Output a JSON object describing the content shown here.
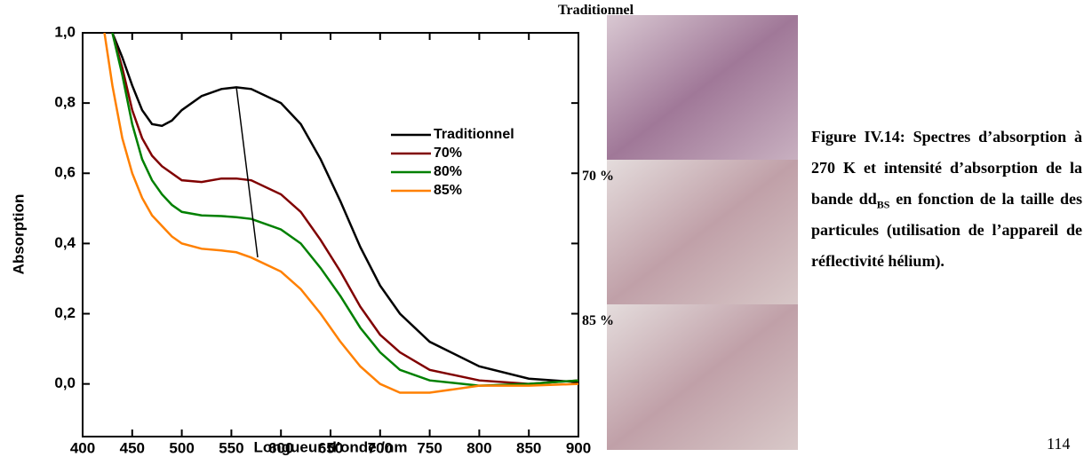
{
  "chart_data": {
    "type": "line",
    "xlabel": "Longueur d'onde /nm",
    "ylabel": "Absorption",
    "x": [
      422,
      430,
      440,
      450,
      460,
      470,
      480,
      490,
      500,
      520,
      540,
      555,
      570,
      600,
      620,
      640,
      660,
      680,
      700,
      720,
      750,
      800,
      850,
      900
    ],
    "series": [
      {
        "name": "Traditionnel",
        "color": "#000000",
        "values": [
          null,
          1.0,
          0.93,
          0.85,
          0.78,
          0.74,
          0.735,
          0.75,
          0.78,
          0.82,
          0.84,
          0.845,
          0.84,
          0.8,
          0.74,
          0.64,
          0.52,
          0.39,
          0.28,
          0.2,
          0.12,
          0.05,
          0.015,
          0.005
        ]
      },
      {
        "name": "70%",
        "color": "#800000",
        "values": [
          null,
          1.0,
          0.9,
          0.78,
          0.7,
          0.65,
          0.62,
          0.6,
          0.58,
          0.575,
          0.585,
          0.585,
          0.58,
          0.54,
          0.49,
          0.41,
          0.32,
          0.22,
          0.14,
          0.09,
          0.04,
          0.01,
          0.0,
          0.01
        ]
      },
      {
        "name": "80%",
        "color": "#008000",
        "values": [
          null,
          1.0,
          0.88,
          0.74,
          0.64,
          0.58,
          0.54,
          0.51,
          0.49,
          0.48,
          0.478,
          0.475,
          0.47,
          0.44,
          0.4,
          0.33,
          0.25,
          0.16,
          0.09,
          0.04,
          0.01,
          -0.005,
          0.0,
          0.01
        ]
      },
      {
        "name": "85%",
        "color": "#ff8000",
        "values": [
          1.0,
          0.85,
          0.7,
          0.6,
          0.53,
          0.48,
          0.45,
          0.42,
          0.4,
          0.385,
          0.38,
          0.375,
          0.36,
          0.32,
          0.27,
          0.2,
          0.12,
          0.05,
          0.0,
          -0.025,
          -0.025,
          -0.005,
          -0.005,
          0.0
        ]
      }
    ],
    "xlim": [
      400,
      900
    ],
    "xticks": [
      400,
      450,
      500,
      550,
      600,
      650,
      700,
      750,
      800,
      850,
      900
    ],
    "ylim": [
      -0.15,
      1.0
    ],
    "yticks": [
      {
        "value": 0,
        "label": "0,0"
      },
      {
        "value": 0.2,
        "label": "0,2"
      },
      {
        "value": 0.4,
        "label": "0,4"
      },
      {
        "value": 0.6,
        "label": "0,6"
      },
      {
        "value": 0.8,
        "label": "0,8"
      },
      {
        "value": 1.0,
        "label": "1,0"
      }
    ]
  },
  "photos": {
    "labels": [
      "Traditionnel",
      "70 %",
      "85 %"
    ]
  },
  "caption": {
    "text_before": "Figure IV.14: Spectres d’absorption à 270 K et intensité d’absorption de la bande dd",
    "subscript": "BS",
    "text_after": " en fonction de la taille des particules (utilisation de l’appareil de réflectivité hélium)."
  },
  "page_number": "114"
}
